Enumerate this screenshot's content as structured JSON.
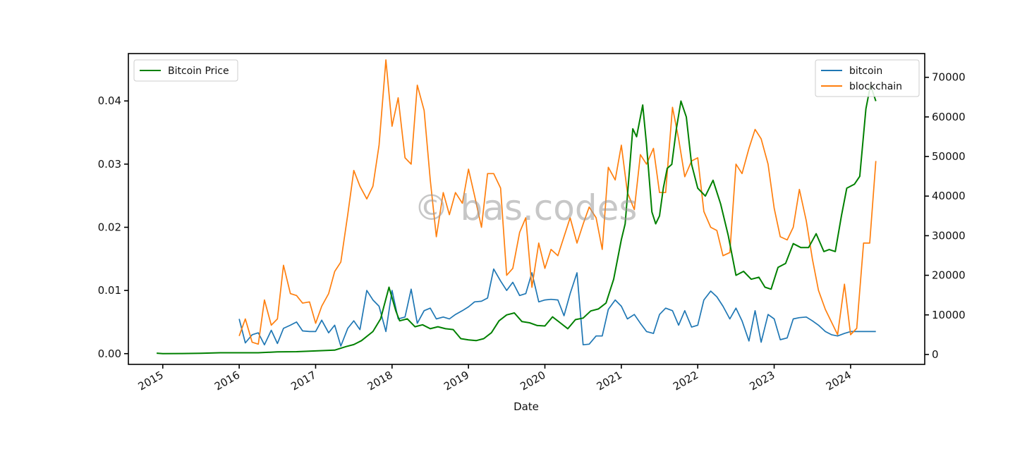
{
  "watermark": "© bas.codes",
  "chart_data": {
    "type": "line",
    "title": "",
    "xlabel": "Date",
    "ylabel_left": "",
    "ylabel_right": "",
    "x_ticks": [
      "2015",
      "2016",
      "2017",
      "2018",
      "2019",
      "2020",
      "2021",
      "2022",
      "2023",
      "2024"
    ],
    "x_range": [
      2014.55,
      2024.97
    ],
    "ylim_left": [
      -0.0017,
      0.0475
    ],
    "ylim_right": [
      -2500,
      76000
    ],
    "y_ticks_left": [
      "0.00",
      "0.01",
      "0.02",
      "0.03",
      "0.04"
    ],
    "y_ticks_right": [
      "0",
      "10000",
      "20000",
      "30000",
      "40000",
      "50000",
      "60000",
      "70000"
    ],
    "grid": false,
    "legends": [
      {
        "placement": "top-left",
        "entries": [
          "Bitcoin Price"
        ]
      },
      {
        "placement": "top-right",
        "entries": [
          "bitcoin",
          "blockchain"
        ]
      }
    ],
    "series": [
      {
        "name": "bitcoin",
        "axis": "left",
        "color": "#1f77b4",
        "x": [
          2016.0,
          2016.08,
          2016.17,
          2016.25,
          2016.33,
          2016.42,
          2016.5,
          2016.58,
          2016.67,
          2016.75,
          2016.83,
          2016.92,
          2017.0,
          2017.08,
          2017.17,
          2017.25,
          2017.33,
          2017.42,
          2017.5,
          2017.58,
          2017.67,
          2017.75,
          2017.83,
          2017.92,
          2018.0,
          2018.08,
          2018.17,
          2018.25,
          2018.33,
          2018.42,
          2018.5,
          2018.58,
          2018.67,
          2018.75,
          2018.83,
          2018.92,
          2019.0,
          2019.08,
          2019.17,
          2019.25,
          2019.33,
          2019.42,
          2019.5,
          2019.58,
          2019.67,
          2019.75,
          2019.83,
          2019.92,
          2020.0,
          2020.08,
          2020.17,
          2020.25,
          2020.33,
          2020.42,
          2020.5,
          2020.58,
          2020.67,
          2020.75,
          2020.83,
          2020.92,
          2021.0,
          2021.08,
          2021.17,
          2021.25,
          2021.33,
          2021.42,
          2021.5,
          2021.58,
          2021.67,
          2021.75,
          2021.83,
          2021.92,
          2022.0,
          2022.08,
          2022.17,
          2022.25,
          2022.33,
          2022.42,
          2022.5,
          2022.58,
          2022.67,
          2022.75,
          2022.83,
          2022.92,
          2023.0,
          2023.08,
          2023.17,
          2023.25,
          2023.33,
          2023.42,
          2023.5,
          2023.58,
          2023.67,
          2023.75,
          2023.83,
          2023.92,
          2024.0,
          2024.08,
          2024.17,
          2024.25,
          2024.33
        ],
        "values": [
          0.0055,
          0.0017,
          0.003,
          0.0033,
          0.0014,
          0.0037,
          0.0016,
          0.004,
          0.0045,
          0.005,
          0.0036,
          0.0035,
          0.0035,
          0.0053,
          0.0033,
          0.0045,
          0.0012,
          0.004,
          0.0052,
          0.0038,
          0.01,
          0.0085,
          0.0075,
          0.0035,
          0.01,
          0.0055,
          0.0058,
          0.0102,
          0.0048,
          0.0068,
          0.0072,
          0.0055,
          0.0058,
          0.0055,
          0.0062,
          0.0068,
          0.0074,
          0.0082,
          0.0083,
          0.0088,
          0.0134,
          0.0115,
          0.01,
          0.0113,
          0.0092,
          0.0095,
          0.0128,
          0.0082,
          0.0085,
          0.0086,
          0.0085,
          0.006,
          0.0095,
          0.0128,
          0.0014,
          0.0015,
          0.0028,
          0.0028,
          0.007,
          0.0085,
          0.0075,
          0.0055,
          0.0062,
          0.0048,
          0.0035,
          0.0032,
          0.0062,
          0.0072,
          0.0068,
          0.0045,
          0.0068,
          0.0042,
          0.0045,
          0.0085,
          0.0099,
          0.009,
          0.0075,
          0.0055,
          0.0072,
          0.0052,
          0.002,
          0.0068,
          0.0018,
          0.0062,
          0.0055,
          0.0022,
          0.0025,
          0.0055,
          0.0057,
          0.0058,
          0.0052,
          0.0045,
          0.0035,
          0.003,
          0.0028,
          0.0032,
          0.0035,
          0.0035,
          0.0035,
          0.0035,
          0.0035
        ]
      },
      {
        "name": "blockchain",
        "axis": "left",
        "color": "#ff7f0e",
        "x": [
          2016.0,
          2016.08,
          2016.17,
          2016.25,
          2016.33,
          2016.42,
          2016.5,
          2016.58,
          2016.67,
          2016.75,
          2016.83,
          2016.92,
          2017.0,
          2017.08,
          2017.17,
          2017.25,
          2017.33,
          2017.42,
          2017.5,
          2017.58,
          2017.67,
          2017.75,
          2017.83,
          2017.92,
          2018.0,
          2018.08,
          2018.17,
          2018.25,
          2018.33,
          2018.42,
          2018.5,
          2018.58,
          2018.67,
          2018.75,
          2018.83,
          2018.92,
          2019.0,
          2019.08,
          2019.17,
          2019.25,
          2019.33,
          2019.42,
          2019.5,
          2019.58,
          2019.67,
          2019.75,
          2019.83,
          2019.92,
          2020.0,
          2020.08,
          2020.17,
          2020.25,
          2020.33,
          2020.42,
          2020.5,
          2020.58,
          2020.67,
          2020.75,
          2020.83,
          2020.92,
          2021.0,
          2021.08,
          2021.17,
          2021.25,
          2021.33,
          2021.42,
          2021.5,
          2021.58,
          2021.67,
          2021.75,
          2021.83,
          2021.92,
          2022.0,
          2022.08,
          2022.17,
          2022.25,
          2022.33,
          2022.42,
          2022.5,
          2022.58,
          2022.67,
          2022.75,
          2022.83,
          2022.92,
          2023.0,
          2023.08,
          2023.17,
          2023.25,
          2023.33,
          2023.42,
          2023.5,
          2023.58,
          2023.67,
          2023.75,
          2023.83,
          2023.92,
          2024.0,
          2024.08,
          2024.17,
          2024.25,
          2024.33
        ],
        "values": [
          0.0028,
          0.0055,
          0.0018,
          0.0015,
          0.0085,
          0.0045,
          0.0055,
          0.014,
          0.0095,
          0.0092,
          0.008,
          0.0082,
          0.0048,
          0.0075,
          0.0095,
          0.013,
          0.0145,
          0.022,
          0.029,
          0.0265,
          0.0245,
          0.0265,
          0.033,
          0.0465,
          0.036,
          0.0405,
          0.031,
          0.03,
          0.0425,
          0.0385,
          0.0275,
          0.0185,
          0.0255,
          0.022,
          0.0255,
          0.0238,
          0.0292,
          0.025,
          0.02,
          0.0285,
          0.0285,
          0.0262,
          0.0124,
          0.0135,
          0.0192,
          0.0215,
          0.0105,
          0.0175,
          0.0135,
          0.0165,
          0.0155,
          0.0185,
          0.0215,
          0.0175,
          0.0205,
          0.0232,
          0.0215,
          0.0165,
          0.0295,
          0.0275,
          0.033,
          0.0255,
          0.0228,
          0.0315,
          0.03,
          0.0325,
          0.0255,
          0.0255,
          0.039,
          0.034,
          0.028,
          0.0305,
          0.031,
          0.0225,
          0.02,
          0.0195,
          0.0155,
          0.016,
          0.03,
          0.0285,
          0.0325,
          0.0355,
          0.034,
          0.03,
          0.023,
          0.0185,
          0.018,
          0.02,
          0.026,
          0.021,
          0.015,
          0.01,
          0.007,
          0.005,
          0.003,
          0.011,
          0.003,
          0.004,
          0.0175,
          0.0175,
          0.0305
        ]
      },
      {
        "name": "Bitcoin Price",
        "axis": "right",
        "color": "#008000",
        "x": [
          2014.92,
          2015.0,
          2015.25,
          2015.5,
          2015.75,
          2016.0,
          2016.25,
          2016.5,
          2016.75,
          2017.0,
          2017.25,
          2017.4,
          2017.5,
          2017.6,
          2017.75,
          2017.85,
          2017.96,
          2018.05,
          2018.1,
          2018.2,
          2018.3,
          2018.4,
          2018.5,
          2018.6,
          2018.7,
          2018.8,
          2018.9,
          2019.0,
          2019.1,
          2019.2,
          2019.3,
          2019.4,
          2019.5,
          2019.6,
          2019.7,
          2019.8,
          2019.9,
          2020.0,
          2020.1,
          2020.2,
          2020.3,
          2020.4,
          2020.5,
          2020.6,
          2020.7,
          2020.8,
          2020.9,
          2021.0,
          2021.05,
          2021.1,
          2021.15,
          2021.2,
          2021.28,
          2021.33,
          2021.4,
          2021.45,
          2021.5,
          2021.55,
          2021.6,
          2021.66,
          2021.72,
          2021.78,
          2021.85,
          2021.92,
          2022.0,
          2022.1,
          2022.2,
          2022.3,
          2022.4,
          2022.5,
          2022.6,
          2022.7,
          2022.8,
          2022.88,
          2022.96,
          2023.05,
          2023.15,
          2023.25,
          2023.35,
          2023.45,
          2023.55,
          2023.65,
          2023.72,
          2023.8,
          2023.88,
          2023.95,
          2024.05,
          2024.12,
          2024.2,
          2024.26,
          2024.33
        ],
        "values": [
          330,
          200,
          250,
          300,
          430,
          430,
          430,
          650,
          700,
          900,
          1100,
          2000,
          2500,
          3500,
          5800,
          9000,
          17000,
          11000,
          8500,
          9000,
          7000,
          7500,
          6500,
          7000,
          6500,
          6300,
          4000,
          3700,
          3500,
          4000,
          5500,
          8500,
          10000,
          10500,
          8300,
          8000,
          7300,
          7200,
          9500,
          8000,
          6500,
          8800,
          9200,
          11000,
          11500,
          13000,
          19000,
          29000,
          33000,
          45000,
          57000,
          55000,
          63000,
          53000,
          36000,
          33000,
          35000,
          42000,
          47000,
          48000,
          57000,
          64000,
          60000,
          48000,
          42000,
          40000,
          44000,
          38000,
          30000,
          20000,
          21000,
          19000,
          19500,
          17000,
          16500,
          22000,
          23000,
          28000,
          27000,
          27000,
          30500,
          26000,
          26500,
          26000,
          35000,
          42000,
          43000,
          45000,
          62000,
          68000,
          64000
        ]
      }
    ]
  }
}
